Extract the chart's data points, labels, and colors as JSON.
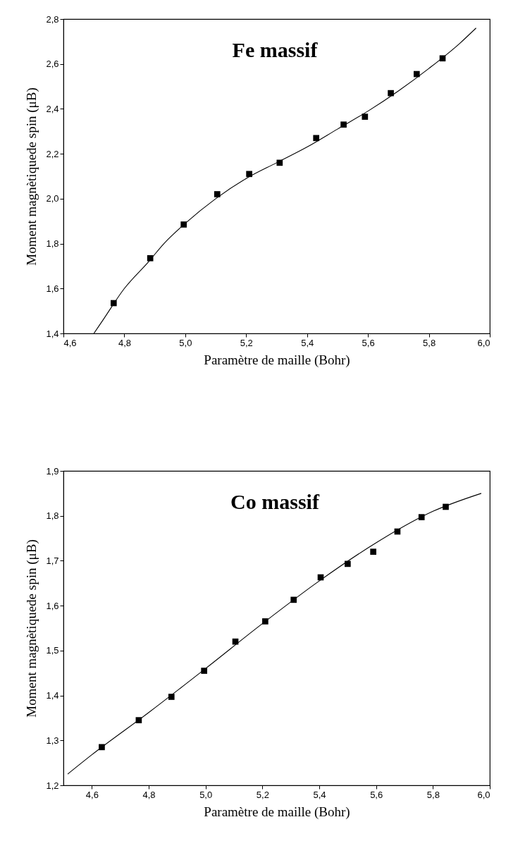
{
  "chart_data": [
    {
      "type": "scatter",
      "title": "Fe massif",
      "xlabel": "Paramètre de maille (Bohr)",
      "ylabel": "Moment magnètiquede spin (μB)",
      "grid": false,
      "legend": false,
      "xlim": [
        4.6,
        6.0
      ],
      "ylim": [
        1.4,
        2.8
      ],
      "xticks": [
        {
          "value": 4.6,
          "label": "4,6"
        },
        {
          "value": 4.8,
          "label": "4,8"
        },
        {
          "value": 5.0,
          "label": "5,0"
        },
        {
          "value": 5.2,
          "label": "5,2"
        },
        {
          "value": 5.4,
          "label": "5,4"
        },
        {
          "value": 5.6,
          "label": "5,6"
        },
        {
          "value": 5.8,
          "label": "5,8"
        },
        {
          "value": 6.0,
          "label": "6,0"
        }
      ],
      "yticks": [
        {
          "value": 1.4,
          "label": "1,4"
        },
        {
          "value": 1.6,
          "label": "1,6"
        },
        {
          "value": 1.8,
          "label": "1,8"
        },
        {
          "value": 2.0,
          "label": "2,0"
        },
        {
          "value": 2.2,
          "label": "2,2"
        },
        {
          "value": 2.4,
          "label": "2,4"
        },
        {
          "value": 2.6,
          "label": "2,6"
        },
        {
          "value": 2.8,
          "label": "2,8"
        }
      ],
      "series": [
        {
          "type": "scatter",
          "marker": "square",
          "color": "#000000",
          "x": [
            4.765,
            4.885,
            4.995,
            5.105,
            5.21,
            5.31,
            5.43,
            5.52,
            5.59,
            5.675,
            5.76,
            5.845
          ],
          "values": [
            1.535,
            1.735,
            1.885,
            2.02,
            2.11,
            2.16,
            2.27,
            2.33,
            2.365,
            2.47,
            2.555,
            2.625
          ]
        },
        {
          "type": "line",
          "color": "#000000",
          "line_style": "solid",
          "x": [
            4.7,
            4.73,
            4.8,
            4.88,
            4.93,
            5.0,
            5.1,
            5.2,
            5.3,
            5.4,
            5.5,
            5.6,
            5.7,
            5.8,
            5.9,
            5.955
          ],
          "values": [
            1.4,
            1.46,
            1.6,
            1.72,
            1.8,
            1.89,
            2.0,
            2.09,
            2.16,
            2.23,
            2.31,
            2.39,
            2.48,
            2.58,
            2.69,
            2.76
          ]
        }
      ]
    },
    {
      "type": "scatter",
      "title": "Co massif",
      "xlabel": "Paramètre de maille (Bohr)",
      "ylabel": "Moment magnètiquede spin (μB)",
      "grid": false,
      "legend": false,
      "xlim": [
        4.5,
        6.0
      ],
      "ylim": [
        1.2,
        1.9
      ],
      "xticks": [
        {
          "value": 4.6,
          "label": "4,6"
        },
        {
          "value": 4.8,
          "label": "4,8"
        },
        {
          "value": 5.0,
          "label": "5,0"
        },
        {
          "value": 5.2,
          "label": "5,2"
        },
        {
          "value": 5.4,
          "label": "5,4"
        },
        {
          "value": 5.6,
          "label": "5,6"
        },
        {
          "value": 5.8,
          "label": "5,8"
        },
        {
          "value": 6.0,
          "label": "6,0"
        }
      ],
      "yticks": [
        {
          "value": 1.2,
          "label": "1,2"
        },
        {
          "value": 1.3,
          "label": "1,3"
        },
        {
          "value": 1.4,
          "label": "1,4"
        },
        {
          "value": 1.5,
          "label": "1,5"
        },
        {
          "value": 1.6,
          "label": "1,6"
        },
        {
          "value": 1.7,
          "label": "1,7"
        },
        {
          "value": 1.8,
          "label": "1,8"
        },
        {
          "value": 1.9,
          "label": "1,9"
        }
      ],
      "series": [
        {
          "type": "scatter",
          "marker": "square",
          "color": "#000000",
          "x": [
            4.635,
            4.765,
            4.88,
            4.995,
            5.105,
            5.21,
            5.31,
            5.405,
            5.5,
            5.59,
            5.675,
            5.76,
            5.845
          ],
          "values": [
            1.285,
            1.345,
            1.397,
            1.455,
            1.52,
            1.565,
            1.613,
            1.663,
            1.693,
            1.72,
            1.765,
            1.797,
            1.82
          ]
        },
        {
          "type": "line",
          "color": "#000000",
          "line_style": "solid",
          "x": [
            4.515,
            4.6,
            4.8,
            5.0,
            5.2,
            5.4,
            5.6,
            5.8,
            5.97
          ],
          "values": [
            1.225,
            1.268,
            1.362,
            1.46,
            1.56,
            1.655,
            1.74,
            1.81,
            1.85
          ]
        }
      ]
    }
  ]
}
